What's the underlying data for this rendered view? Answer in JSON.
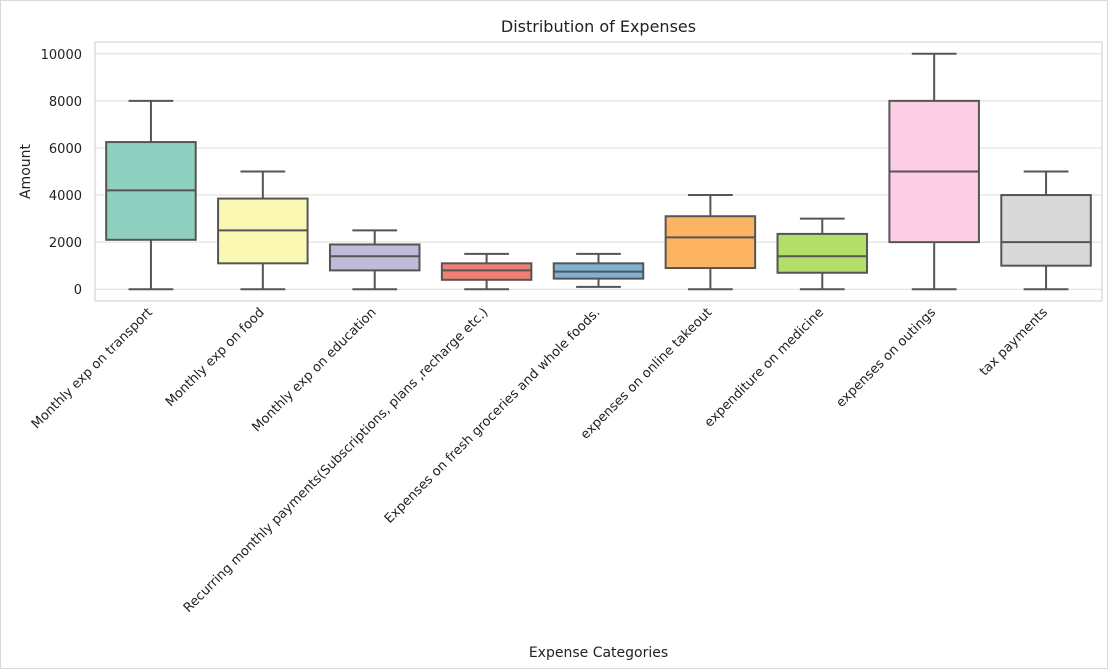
{
  "chart_data": {
    "type": "box",
    "title": "Distribution of Expenses",
    "xlabel": "Expense Categories",
    "ylabel": "Amount",
    "ylim": [
      -500,
      10500
    ],
    "yticks": [
      0,
      2000,
      4000,
      6000,
      8000,
      10000
    ],
    "grid": true,
    "series": [
      {
        "category": "Monthly exp on transport",
        "min": 0,
        "q1": 2100,
        "median": 4200,
        "q3": 6250,
        "max": 8000,
        "color": "#8fd0c0"
      },
      {
        "category": "Monthly exp on food",
        "min": 0,
        "q1": 1100,
        "median": 2500,
        "q3": 3850,
        "max": 5000,
        "color": "#fbf8b4"
      },
      {
        "category": "Monthly exp on education",
        "min": 0,
        "q1": 800,
        "median": 1400,
        "q3": 1900,
        "max": 2500,
        "color": "#bfbcda"
      },
      {
        "category": "Recurring monthly payments(Subscriptions, plans ,recharge etc.)",
        "min": 0,
        "q1": 400,
        "median": 800,
        "q3": 1100,
        "max": 1500,
        "color": "#f08074"
      },
      {
        "category": "Expenses on fresh groceries and whole foods.",
        "min": 100,
        "q1": 450,
        "median": 750,
        "q3": 1100,
        "max": 1500,
        "color": "#80b1d3"
      },
      {
        "category": "expenses on online takeout",
        "min": 0,
        "q1": 900,
        "median": 2200,
        "q3": 3100,
        "max": 4000,
        "color": "#fcb462"
      },
      {
        "category": "expenditure on medicine",
        "min": 0,
        "q1": 700,
        "median": 1400,
        "q3": 2350,
        "max": 3000,
        "color": "#b3de69"
      },
      {
        "category": "expenses on outings",
        "min": 0,
        "q1": 2000,
        "median": 5000,
        "q3": 8000,
        "max": 10000,
        "color": "#fccde5"
      },
      {
        "category": "tax payments",
        "min": 0,
        "q1": 1000,
        "median": 2000,
        "q3": 4000,
        "max": 5000,
        "color": "#d9d9d9"
      }
    ]
  }
}
